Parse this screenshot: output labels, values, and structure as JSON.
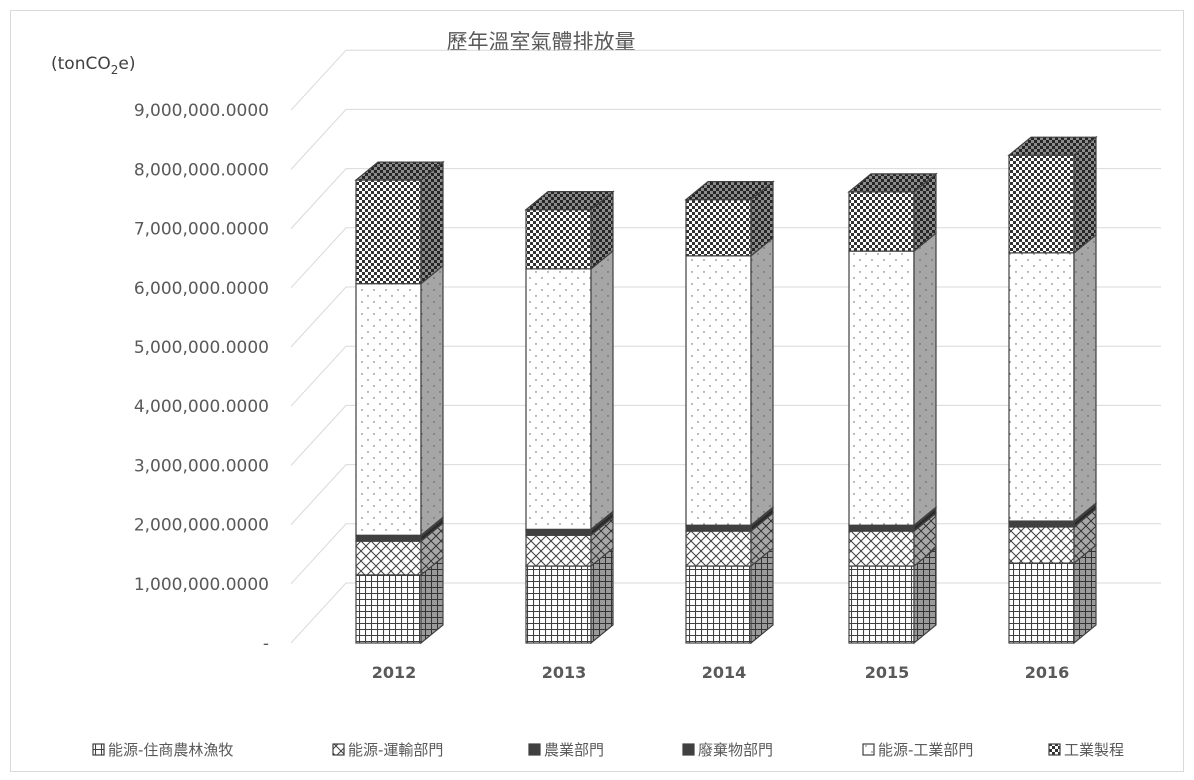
{
  "chart_data": {
    "type": "bar",
    "stacked": true,
    "style": "3d-column, monochrome pattern fills",
    "title": "歷年溫室氣體排放量",
    "ylabel": "(tonCO2e)",
    "ylabel_parts": {
      "prefix": "(tonCO",
      "sub": "2",
      "suffix": "e)"
    },
    "xlabel": "",
    "ylim": [
      0,
      10000000
    ],
    "yticks": [
      0,
      1000000,
      2000000,
      3000000,
      4000000,
      5000000,
      6000000,
      7000000,
      8000000,
      9000000
    ],
    "ytick_labels": [
      "-",
      "1,000,000.0000",
      "2,000,000.0000",
      "3,000,000.0000",
      "4,000,000.0000",
      "5,000,000.0000",
      "6,000,000.0000",
      "7,000,000.0000",
      "8,000,000.0000",
      "9,000,000.0000"
    ],
    "categories": [
      "2012",
      "2013",
      "2014",
      "2015",
      "2016"
    ],
    "series": [
      {
        "name": "能源-住商農林漁牧",
        "pattern": "grid",
        "values": [
          1150000,
          1300000,
          1300000,
          1300000,
          1350000
        ]
      },
      {
        "name": "能源-運輸部門",
        "pattern": "lattice",
        "values": [
          570000,
          520000,
          590000,
          590000,
          610000
        ]
      },
      {
        "name": "農業部門",
        "pattern": "solid-dark",
        "values": [
          80000,
          80000,
          80000,
          80000,
          80000
        ]
      },
      {
        "name": "廢棄物部門",
        "pattern": "solid-dark",
        "values": [
          20000,
          20000,
          20000,
          20000,
          20000
        ]
      },
      {
        "name": "能源-工業部門",
        "pattern": "dots",
        "values": [
          4250000,
          4400000,
          4550000,
          4630000,
          4530000
        ]
      },
      {
        "name": "工業製程",
        "pattern": "checker",
        "values": [
          1750000,
          1000000,
          950000,
          1000000,
          1650000
        ]
      }
    ],
    "grid": true,
    "legend_position": "bottom"
  },
  "colors": {
    "background": "#ffffff",
    "gridline": "#d9d9d9",
    "text": "#595959",
    "bar_outline": "#404040",
    "dark_fill": "#404040"
  }
}
